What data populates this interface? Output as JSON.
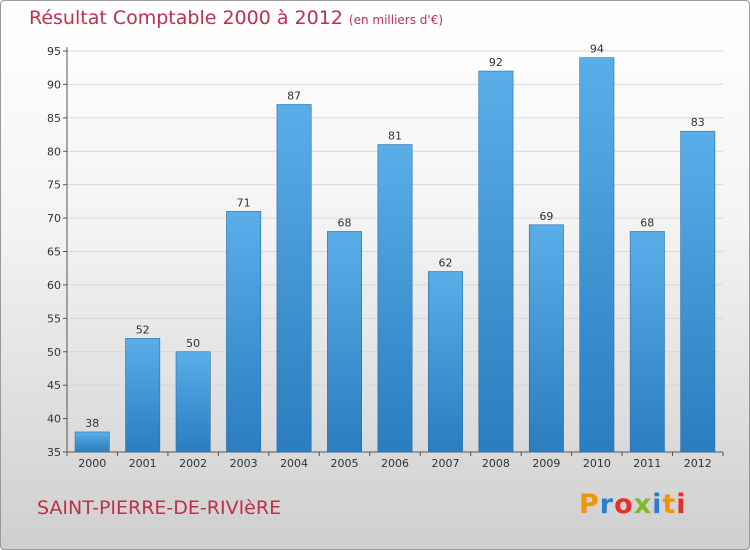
{
  "header": {
    "title": "Résultat Comptable 2000 à 2012",
    "subtitle": "(en milliers d'€)"
  },
  "place_name": "SAINT-PIERRE-DE-RIVIèRE",
  "logo": {
    "text": "Proxiti",
    "colors": [
      "#f29400",
      "#2a7fc9",
      "#e62e2d",
      "#7cba2a",
      "#2a7fc9",
      "#f29400",
      "#e62e2d"
    ]
  },
  "chart_data": {
    "type": "bar",
    "title": "Résultat Comptable 2000 à 2012",
    "subtitle": "(en milliers d'€)",
    "categories": [
      "2000",
      "2001",
      "2002",
      "2003",
      "2004",
      "2005",
      "2006",
      "2007",
      "2008",
      "2009",
      "2010",
      "2011",
      "2012"
    ],
    "values": [
      38,
      52,
      50,
      71,
      87,
      68,
      81,
      62,
      92,
      69,
      94,
      68,
      83
    ],
    "ylim": [
      35,
      95
    ],
    "yticks": [
      35,
      40,
      45,
      50,
      55,
      60,
      65,
      70,
      75,
      80,
      85,
      90,
      95
    ],
    "grid": true,
    "bar_color_top": "#5aaee8",
    "bar_color_bottom": "#2a7dbf"
  }
}
